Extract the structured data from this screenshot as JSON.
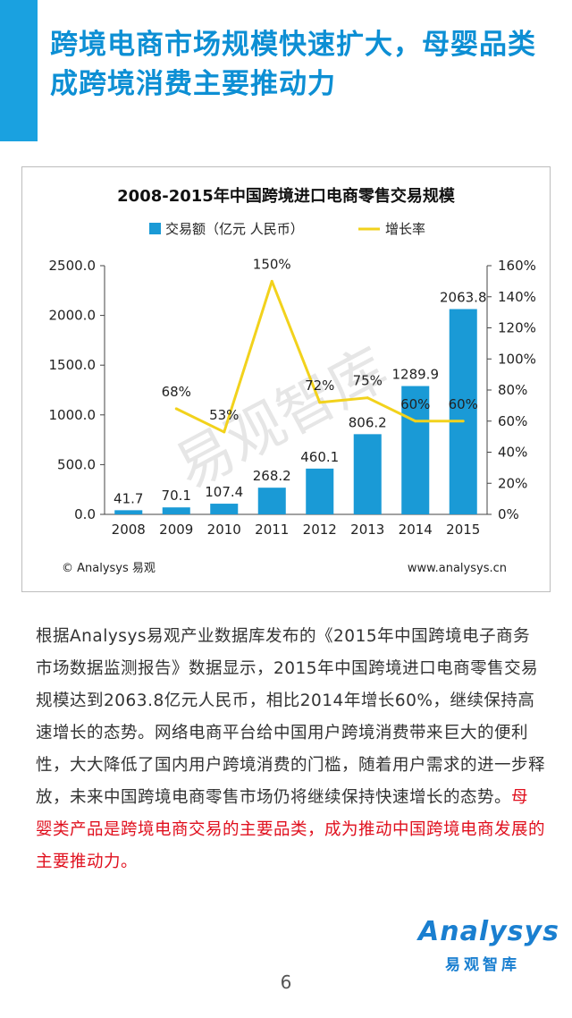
{
  "page": {
    "title": "跨境电商市场规模快速扩大，母婴品类成跨境消费主要推动力",
    "page_number": "6"
  },
  "chart_data": {
    "type": "bar",
    "title": "2008-2015年中国跨境进口电商零售交易规模",
    "categories": [
      "2008",
      "2009",
      "2010",
      "2011",
      "2012",
      "2013",
      "2014",
      "2015"
    ],
    "series": [
      {
        "name": "交易额（亿元 人民币）",
        "type": "bar",
        "axis": "left",
        "values": [
          41.7,
          70.1,
          107.4,
          268.2,
          460.1,
          806.2,
          1289.9,
          2063.8
        ],
        "labels": [
          "41.7",
          "70.1",
          "107.4",
          "268.2",
          "460.1",
          "806.2",
          "1289.9",
          "2063.8"
        ]
      },
      {
        "name": "增长率",
        "type": "line",
        "axis": "right",
        "values": [
          null,
          68,
          53,
          150,
          72,
          75,
          60,
          60
        ],
        "labels": [
          "",
          "68%",
          "53%",
          "150%",
          "72%",
          "75%",
          "60%",
          "60%"
        ]
      }
    ],
    "left_ticks": [
      "0.0",
      "500.0",
      "1000.0",
      "1500.0",
      "2000.0",
      "2500.0"
    ],
    "right_ticks": [
      "0%",
      "20%",
      "40%",
      "60%",
      "80%",
      "100%",
      "120%",
      "140%",
      "160%"
    ],
    "ylim_left": [
      0,
      2500
    ],
    "ylim_right": [
      0,
      160
    ],
    "legend_position": "top",
    "grid": false,
    "colors": {
      "bar": "#1a9ad6",
      "line": "#f2d21c"
    },
    "source": "© Analysys 易观",
    "website": "www.analysys.cn",
    "watermark": "易观智库"
  },
  "body": {
    "paragraph": "根据Analysys易观产业数据库发布的《2015年中国跨境电子商务市场数据监测报告》数据显示，2015年中国跨境进口电商零售交易规模达到2063.8亿元人民币，相比2014年增长60%，继续保持高速增长的态势。网络电商平台给中国用户跨境消费带来巨大的便利性，大大降低了国内用户跨境消费的门槛，随着用户需求的进一步释放，未来中国跨境电商零售市场仍将继续保持快速增长的态势。",
    "highlight": "母婴类产品是跨境电商交易的主要品类，成为推动中国跨境电商发展的主要推动力。"
  },
  "logo": {
    "wordmark": "Analysys",
    "chinese": "易观智库"
  },
  "theme": {
    "accent": "#1aa1e0",
    "title_color": "#0d8fd4",
    "highlight_color": "#e0101e"
  }
}
